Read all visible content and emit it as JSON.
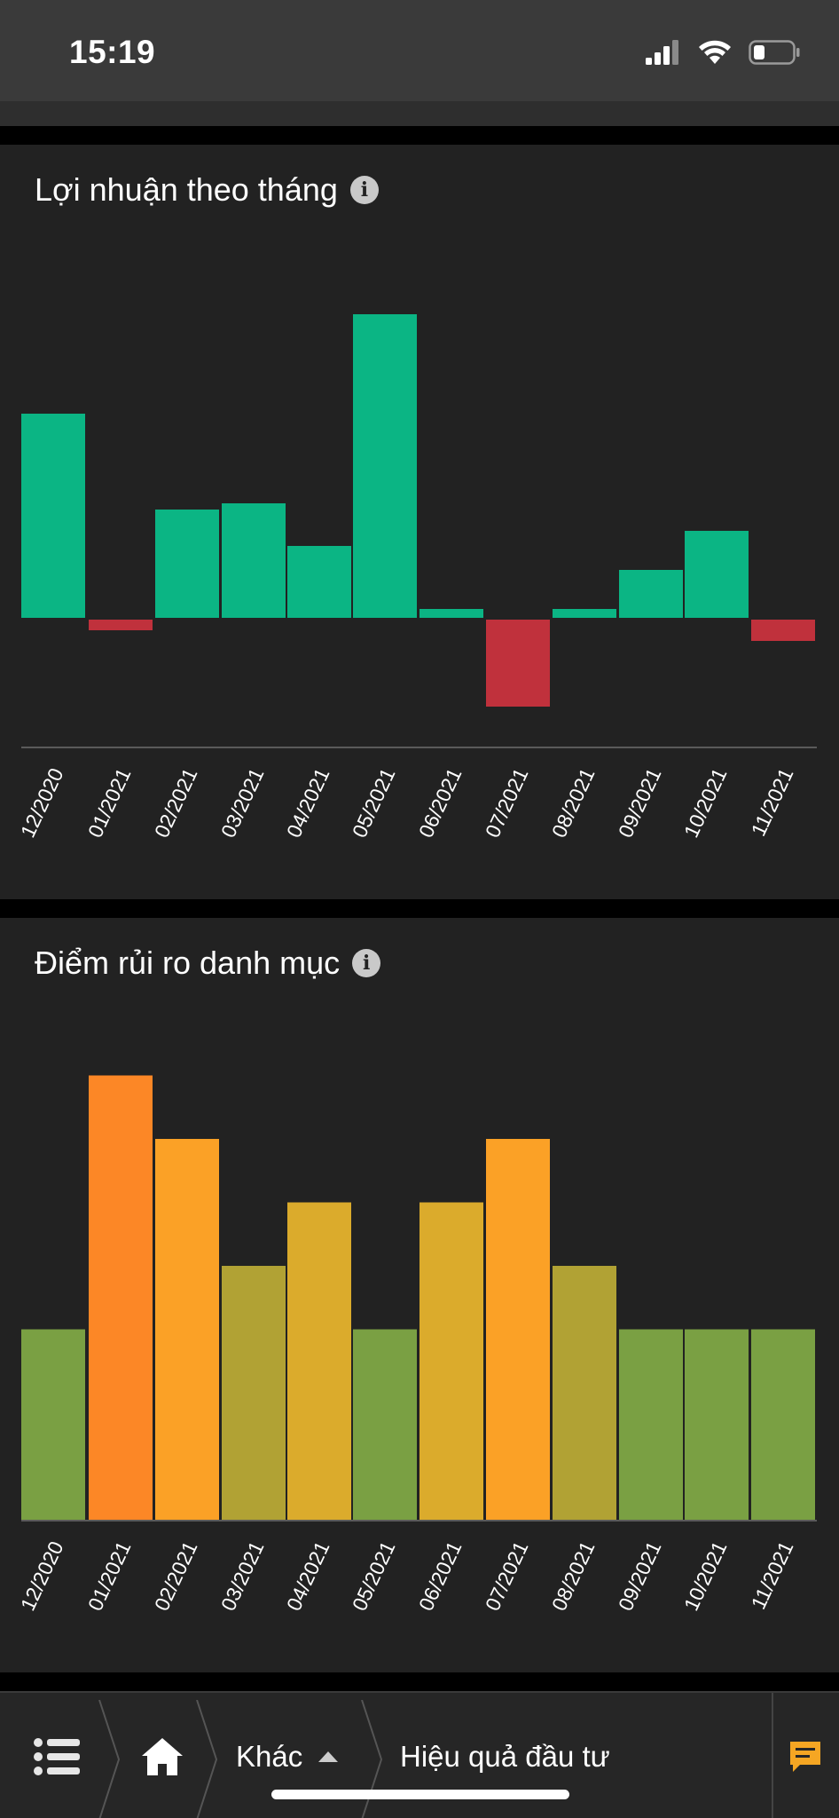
{
  "status": {
    "time": "15:19"
  },
  "card1": {
    "title": "Lợi nhuận theo tháng"
  },
  "card2": {
    "title": "Điểm rủi ro danh mục"
  },
  "months": [
    "12/2020",
    "01/2021",
    "02/2021",
    "03/2021",
    "04/2021",
    "05/2021",
    "06/2021",
    "07/2021",
    "08/2021",
    "09/2021",
    "10/2021",
    "11/2021"
  ],
  "chart_data": [
    {
      "type": "bar",
      "title": "Lợi nhuận theo tháng",
      "categories": [
        "12/2020",
        "01/2021",
        "02/2021",
        "03/2021",
        "04/2021",
        "05/2021",
        "06/2021",
        "07/2021",
        "08/2021",
        "09/2021",
        "10/2021",
        "11/2021"
      ],
      "values": [
        230,
        -12,
        122,
        129,
        81,
        342,
        10,
        -98,
        10,
        54,
        98,
        -24
      ],
      "colors": {
        "positive": "#0bb584",
        "negative": "#c0313c"
      },
      "grid": false
    },
    {
      "type": "bar",
      "title": "Điểm rủi ro danh mục",
      "categories": [
        "12/2020",
        "01/2021",
        "02/2021",
        "03/2021",
        "04/2021",
        "05/2021",
        "06/2021",
        "07/2021",
        "08/2021",
        "09/2021",
        "10/2021",
        "11/2021"
      ],
      "values": [
        3,
        7,
        6,
        4,
        5,
        3,
        5,
        6,
        4,
        3,
        3,
        3
      ],
      "bar_colors": [
        "#7aa043",
        "#fc8726",
        "#fba126",
        "#b1a234",
        "#dbab2c",
        "#7aa043",
        "#dbab2c",
        "#fba126",
        "#b1a234",
        "#7aa043",
        "#7aa043",
        "#7aa043"
      ],
      "grid": false
    }
  ],
  "bottom_nav": {
    "menu_icon": "list-icon",
    "home_icon": "home-icon",
    "other_label": "Khác",
    "page_label": "Hiệu quả đầu tư",
    "chat_icon": "chat-icon"
  }
}
